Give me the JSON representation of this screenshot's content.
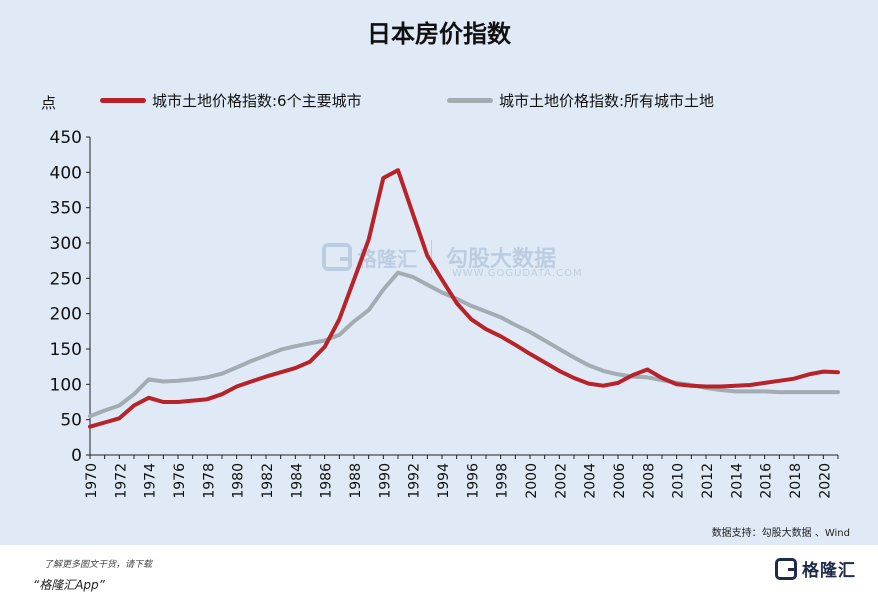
{
  "chart_data": {
    "type": "line",
    "title": "日本房价指数",
    "ylabel": "点",
    "ylim": [
      0,
      450
    ],
    "yticks": [
      0,
      50,
      100,
      150,
      200,
      250,
      300,
      350,
      400,
      450
    ],
    "xlim": [
      1970,
      2021
    ],
    "xticks": [
      1970,
      1972,
      1974,
      1976,
      1978,
      1980,
      1982,
      1984,
      1986,
      1988,
      1990,
      1992,
      1994,
      1996,
      1998,
      2000,
      2002,
      2004,
      2006,
      2008,
      2010,
      2012,
      2014,
      2016,
      2018,
      2020
    ],
    "x": [
      1970,
      1971,
      1972,
      1973,
      1974,
      1975,
      1976,
      1977,
      1978,
      1979,
      1980,
      1981,
      1982,
      1983,
      1984,
      1985,
      1986,
      1987,
      1988,
      1989,
      1990,
      1991,
      1992,
      1993,
      1994,
      1995,
      1996,
      1997,
      1998,
      1999,
      2000,
      2001,
      2002,
      2003,
      2004,
      2005,
      2006,
      2007,
      2008,
      2009,
      2010,
      2011,
      2012,
      2013,
      2014,
      2015,
      2016,
      2017,
      2018,
      2019,
      2020,
      2021
    ],
    "legend_position": "top",
    "grid": false,
    "series": [
      {
        "name": "城市土地价格指数:6个主要城市",
        "color": "#b8232a",
        "values": [
          40,
          46,
          52,
          70,
          81,
          75,
          75,
          77,
          79,
          86,
          97,
          104,
          111,
          117,
          123,
          132,
          153,
          192,
          248,
          305,
          392,
          403,
          342,
          282,
          248,
          215,
          192,
          178,
          168,
          156,
          143,
          131,
          119,
          109,
          101,
          98,
          102,
          113,
          121,
          109,
          100,
          98,
          97,
          97,
          98,
          99,
          102,
          105,
          108,
          114,
          118,
          117
        ]
      },
      {
        "name": "城市土地价格指数:所有城市土地",
        "color": "#a3abb3",
        "values": [
          55,
          63,
          70,
          86,
          107,
          104,
          105,
          107,
          110,
          115,
          124,
          133,
          141,
          149,
          154,
          158,
          162,
          170,
          189,
          205,
          234,
          258,
          252,
          241,
          230,
          221,
          211,
          203,
          195,
          184,
          174,
          162,
          150,
          138,
          127,
          119,
          114,
          111,
          110,
          106,
          102,
          99,
          95,
          92,
          90,
          90,
          90,
          89,
          89,
          89,
          89,
          89
        ]
      }
    ]
  },
  "source": "数据支持：勾股大数据 、Wind",
  "footer": {
    "note": "了解更多图文干货，请下载",
    "app": "“格隆汇App”"
  },
  "logo_text": "格隆汇",
  "watermark": {
    "brand": "格隆汇",
    "name": "勾股大数据",
    "url": "WWW.GOGUDATA.COM"
  }
}
